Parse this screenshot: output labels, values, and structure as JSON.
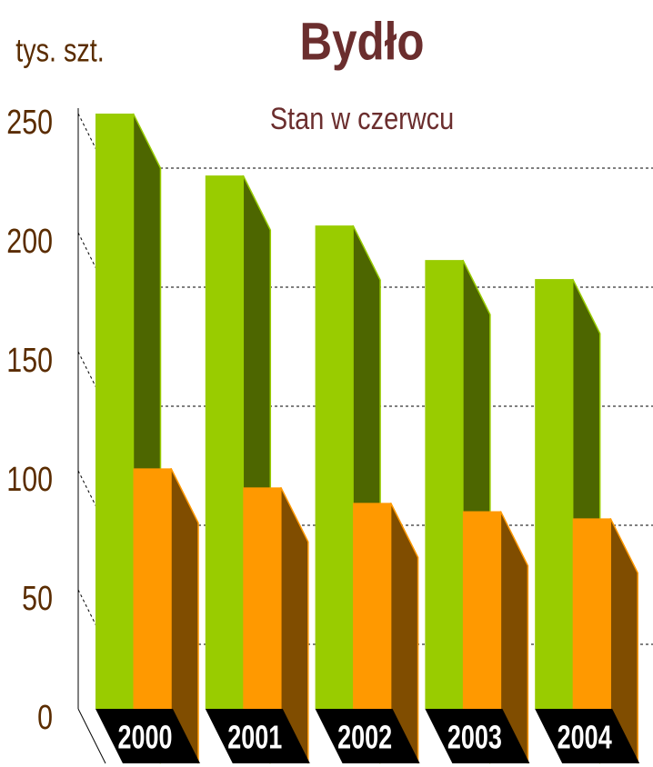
{
  "chart_data": {
    "type": "bar3d",
    "title": "Bydło",
    "subtitle": "Stan w czerwcu",
    "y_label": "tys. szt.",
    "categories": [
      "2000",
      "2001",
      "2002",
      "2003",
      "2004"
    ],
    "series": [
      {
        "color": "#99cc00",
        "side_color": "#4d6600",
        "values": [
          250,
          224,
          203,
          188.5,
          180.5
        ]
      },
      {
        "color": "#ff9900",
        "side_color": "#804d00",
        "values": [
          101,
          93,
          86.5,
          83,
          80
        ]
      }
    ],
    "ylim": [
      0,
      250
    ],
    "yticks": [
      0,
      50,
      100,
      150,
      200,
      250
    ],
    "grid": true
  }
}
